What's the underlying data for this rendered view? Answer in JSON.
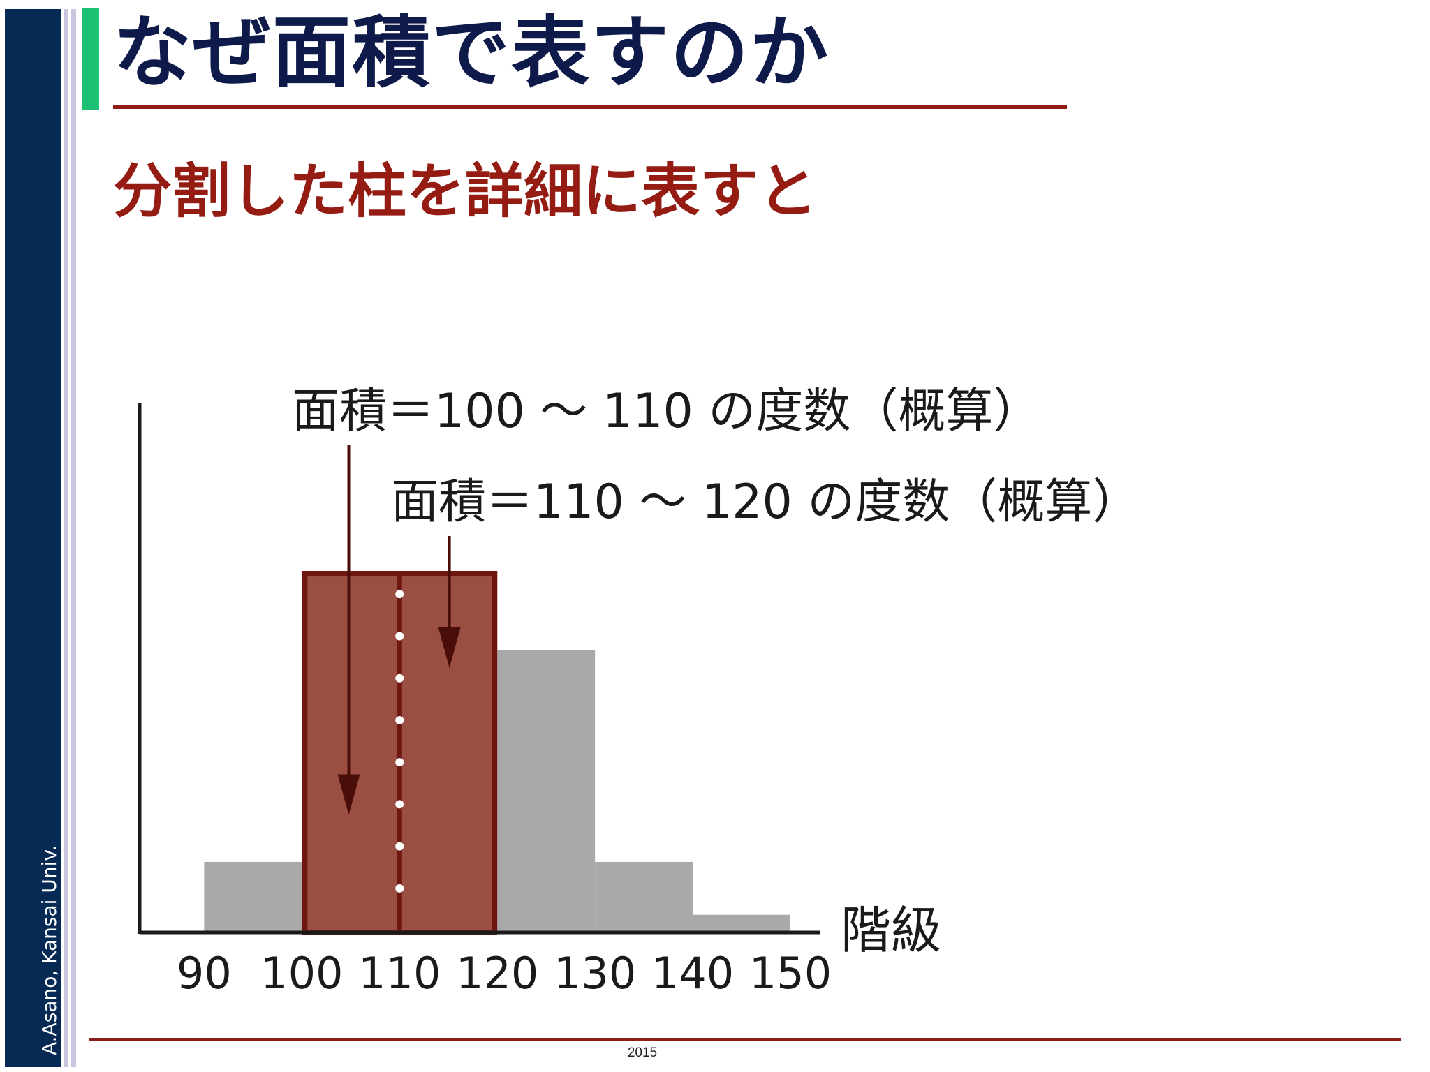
{
  "slide": {
    "sidebar_text": "A.Asano, Kansai Univ.",
    "title": "なぜ面積で表すのか",
    "subtitle": "分割した柱を詳細に表すと",
    "footer": "2015"
  },
  "colors": {
    "sidebar": "#062a54",
    "accent": "#1ec074",
    "title": "#0d1a4a",
    "subtitle": "#951c13",
    "rule": "#8e1c17",
    "bar_gray": "#a9a9a9",
    "bar_highlight": "#9b4f43",
    "highlight_border": "#6e1711"
  },
  "chart_data": {
    "type": "bar",
    "title": "",
    "xlabel": "階級",
    "ylabel": "",
    "x_ticks": [
      "90",
      "100",
      "110",
      "120",
      "130",
      "140",
      "150"
    ],
    "bins": [
      {
        "from": 90,
        "to": 100,
        "value": 2.4
      },
      {
        "from": 100,
        "to": 110,
        "value": 12.3,
        "highlighted": true
      },
      {
        "from": 110,
        "to": 120,
        "value": 12.3,
        "highlighted": true
      },
      {
        "from": 120,
        "to": 130,
        "value": 9.6
      },
      {
        "from": 130,
        "to": 140,
        "value": 2.4
      },
      {
        "from": 140,
        "to": 150,
        "value": 0.6
      }
    ],
    "highlight_range": [
      100,
      120
    ],
    "divider_at": 110,
    "annotations": [
      {
        "text": "面積＝100 ～ 110 の度数（概算）",
        "target_x": 104.8,
        "target_y": 4
      },
      {
        "text": "面積＝110 ～ 120 の度数（概算）",
        "target_x": 115.1,
        "target_y": 9
      }
    ],
    "xlim": [
      83.4,
      153
    ],
    "ylim": [
      0,
      18
    ]
  }
}
